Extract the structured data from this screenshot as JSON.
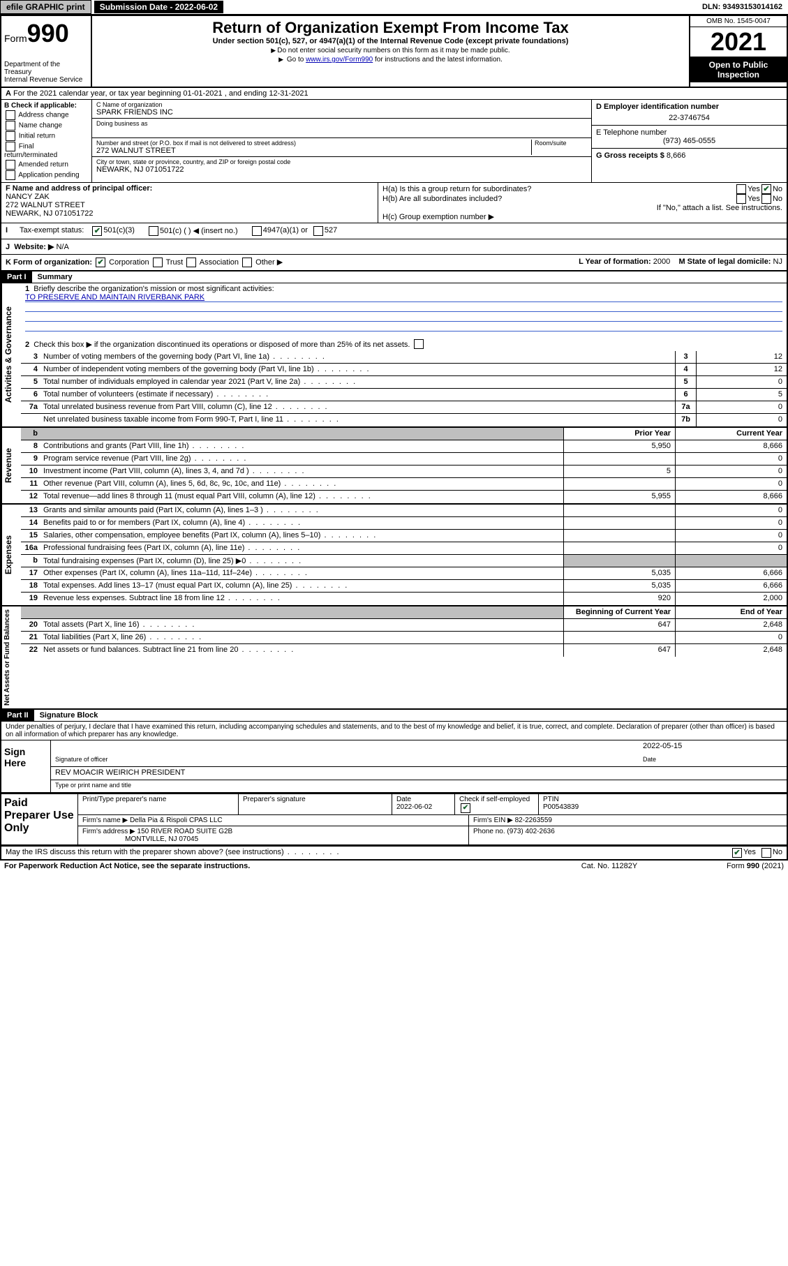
{
  "topbar": {
    "efile": "efile GRAPHIC print",
    "submission_label": "Submission Date - 2022-06-02",
    "dln_label": "DLN: 93493153014162"
  },
  "header": {
    "form_label": "Form",
    "form_number": "990",
    "dept": "Department of the Treasury\nInternal Revenue Service",
    "title": "Return of Organization Exempt From Income Tax",
    "subtitle": "Under section 501(c), 527, or 4947(a)(1) of the Internal Revenue Code (except private foundations)",
    "note1": "Do not enter social security numbers on this form as it may be made public.",
    "note2_pre": "Go to ",
    "note2_link": "www.irs.gov/Form990",
    "note2_post": " for instructions and the latest information.",
    "omb": "OMB No. 1545-0047",
    "year": "2021",
    "open": "Open to Public Inspection"
  },
  "line_a": "For the 2021 calendar year, or tax year beginning 01-01-2021   , and ending 12-31-2021",
  "b": {
    "label": "B Check if applicable:",
    "items": [
      "Address change",
      "Name change",
      "Initial return",
      "Final return/terminated",
      "Amended return",
      "Application pending"
    ]
  },
  "c": {
    "name_label": "C Name of organization",
    "name": "SPARK FRIENDS INC",
    "dba_label": "Doing business as",
    "dba": "",
    "addr_label": "Number and street (or P.O. box if mail is not delivered to street address)",
    "room_label": "Room/suite",
    "addr": "272 WALNUT STREET",
    "city_label": "City or town, state or province, country, and ZIP or foreign postal code",
    "city": "NEWARK, NJ  071051722"
  },
  "d": {
    "label": "D Employer identification number",
    "value": "22-3746754"
  },
  "e": {
    "label": "E Telephone number",
    "value": "(973) 465-0555"
  },
  "g": {
    "label": "G Gross receipts $",
    "value": "8,666"
  },
  "f": {
    "label": "F  Name and address of principal officer:",
    "name": "NANCY ZAK",
    "addr1": "272 WALNUT STREET",
    "addr2": "NEWARK, NJ  071051722"
  },
  "h": {
    "a_label": "H(a)  Is this a group return for subordinates?",
    "b_label": "H(b)  Are all subordinates included?",
    "b_note": "If \"No,\" attach a list. See instructions.",
    "c_label": "H(c)  Group exemption number ▶",
    "yes": "Yes",
    "no": "No"
  },
  "i": {
    "label": "Tax-exempt status:",
    "opt1": "501(c)(3)",
    "opt2": "501(c) (  ) ◀ (insert no.)",
    "opt3": "4947(a)(1) or",
    "opt4": "527"
  },
  "j": {
    "label": "Website: ▶",
    "value": "N/A"
  },
  "k": {
    "label": "K Form of organization:",
    "opts": [
      "Corporation",
      "Trust",
      "Association",
      "Other ▶"
    ],
    "l_label": "L Year of formation:",
    "l_val": "2000",
    "m_label": "M State of legal domicile:",
    "m_val": "NJ"
  },
  "part1": {
    "header": "Part I",
    "title": "Summary"
  },
  "summary": {
    "line1_label": "Briefly describe the organization's mission or most significant activities:",
    "line1_text": "TO PRESERVE AND MAINTAIN RIVERBANK PARK",
    "line2": "Check this box ▶        if the organization discontinued its operations or disposed of more than 25% of its net assets.",
    "rows_gov": [
      {
        "n": "3",
        "d": "Number of voting members of the governing body (Part VI, line 1a)",
        "box": "3",
        "v": "12"
      },
      {
        "n": "4",
        "d": "Number of independent voting members of the governing body (Part VI, line 1b)",
        "box": "4",
        "v": "12"
      },
      {
        "n": "5",
        "d": "Total number of individuals employed in calendar year 2021 (Part V, line 2a)",
        "box": "5",
        "v": "0"
      },
      {
        "n": "6",
        "d": "Total number of volunteers (estimate if necessary)",
        "box": "6",
        "v": "5"
      },
      {
        "n": "7a",
        "d": "Total unrelated business revenue from Part VIII, column (C), line 12",
        "box": "7a",
        "v": "0"
      },
      {
        "n": "",
        "d": "Net unrelated business taxable income from Form 990-T, Part I, line 11",
        "box": "7b",
        "v": "0"
      }
    ],
    "col_hdr_prior": "Prior Year",
    "col_hdr_current": "Current Year",
    "rows_rev": [
      {
        "n": "8",
        "d": "Contributions and grants (Part VIII, line 1h)",
        "p": "5,950",
        "c": "8,666"
      },
      {
        "n": "9",
        "d": "Program service revenue (Part VIII, line 2g)",
        "p": "",
        "c": "0"
      },
      {
        "n": "10",
        "d": "Investment income (Part VIII, column (A), lines 3, 4, and 7d )",
        "p": "5",
        "c": "0"
      },
      {
        "n": "11",
        "d": "Other revenue (Part VIII, column (A), lines 5, 6d, 8c, 9c, 10c, and 11e)",
        "p": "",
        "c": "0"
      },
      {
        "n": "12",
        "d": "Total revenue—add lines 8 through 11 (must equal Part VIII, column (A), line 12)",
        "p": "5,955",
        "c": "8,666"
      }
    ],
    "rows_exp": [
      {
        "n": "13",
        "d": "Grants and similar amounts paid (Part IX, column (A), lines 1–3 )",
        "p": "",
        "c": "0"
      },
      {
        "n": "14",
        "d": "Benefits paid to or for members (Part IX, column (A), line 4)",
        "p": "",
        "c": "0"
      },
      {
        "n": "15",
        "d": "Salaries, other compensation, employee benefits (Part IX, column (A), lines 5–10)",
        "p": "",
        "c": "0"
      },
      {
        "n": "16a",
        "d": "Professional fundraising fees (Part IX, column (A), line 11e)",
        "p": "",
        "c": "0"
      },
      {
        "n": "b",
        "d": "Total fundraising expenses (Part IX, column (D), line 25) ▶0",
        "p": "shade",
        "c": "shade"
      },
      {
        "n": "17",
        "d": "Other expenses (Part IX, column (A), lines 11a–11d, 11f–24e)",
        "p": "5,035",
        "c": "6,666"
      },
      {
        "n": "18",
        "d": "Total expenses. Add lines 13–17 (must equal Part IX, column (A), line 25)",
        "p": "5,035",
        "c": "6,666"
      },
      {
        "n": "19",
        "d": "Revenue less expenses. Subtract line 18 from line 12",
        "p": "920",
        "c": "2,000"
      }
    ],
    "col_hdr_begin": "Beginning of Current Year",
    "col_hdr_end": "End of Year",
    "rows_net": [
      {
        "n": "20",
        "d": "Total assets (Part X, line 16)",
        "p": "647",
        "c": "2,648"
      },
      {
        "n": "21",
        "d": "Total liabilities (Part X, line 26)",
        "p": "",
        "c": "0"
      },
      {
        "n": "22",
        "d": "Net assets or fund balances. Subtract line 21 from line 20",
        "p": "647",
        "c": "2,648"
      }
    ]
  },
  "vtabs": {
    "gov": "Activities & Governance",
    "rev": "Revenue",
    "exp": "Expenses",
    "net": "Net Assets or Fund Balances"
  },
  "part2": {
    "header": "Part II",
    "title": "Signature Block",
    "declaration": "Under penalties of perjury, I declare that I have examined this return, including accompanying schedules and statements, and to the best of my knowledge and belief, it is true, correct, and complete. Declaration of preparer (other than officer) is based on all information of which preparer has any knowledge."
  },
  "sign": {
    "label": "Sign Here",
    "sig_label": "Signature of officer",
    "date_label": "Date",
    "date_val": "2022-05-15",
    "name": "REV MOACIR WEIRICH  PRESIDENT",
    "name_label": "Type or print name and title"
  },
  "prep": {
    "label": "Paid Preparer Use Only",
    "h1": "Print/Type preparer's name",
    "h2": "Preparer's signature",
    "h3": "Date",
    "h3v": "2022-06-02",
    "h4": "Check         if self-employed",
    "h5": "PTIN",
    "h5v": "P00543839",
    "firm_label": "Firm's name      ▶",
    "firm": "Della Pia & Rispoli CPAS LLC",
    "ein_label": "Firm's EIN ▶",
    "ein": "82-2263559",
    "addr_label": "Firm's address ▶",
    "addr1": "150 RIVER ROAD SUITE G2B",
    "addr2": "MONTVILLE, NJ  07045",
    "phone_label": "Phone no.",
    "phone": "(973) 402-2636"
  },
  "footer": {
    "discuss": "May the IRS discuss this return with the preparer shown above? (see instructions)",
    "yes": "Yes",
    "no": "No",
    "paperwork": "For Paperwork Reduction Act Notice, see the separate instructions.",
    "cat": "Cat. No. 11282Y",
    "form": "Form 990 (2021)"
  }
}
